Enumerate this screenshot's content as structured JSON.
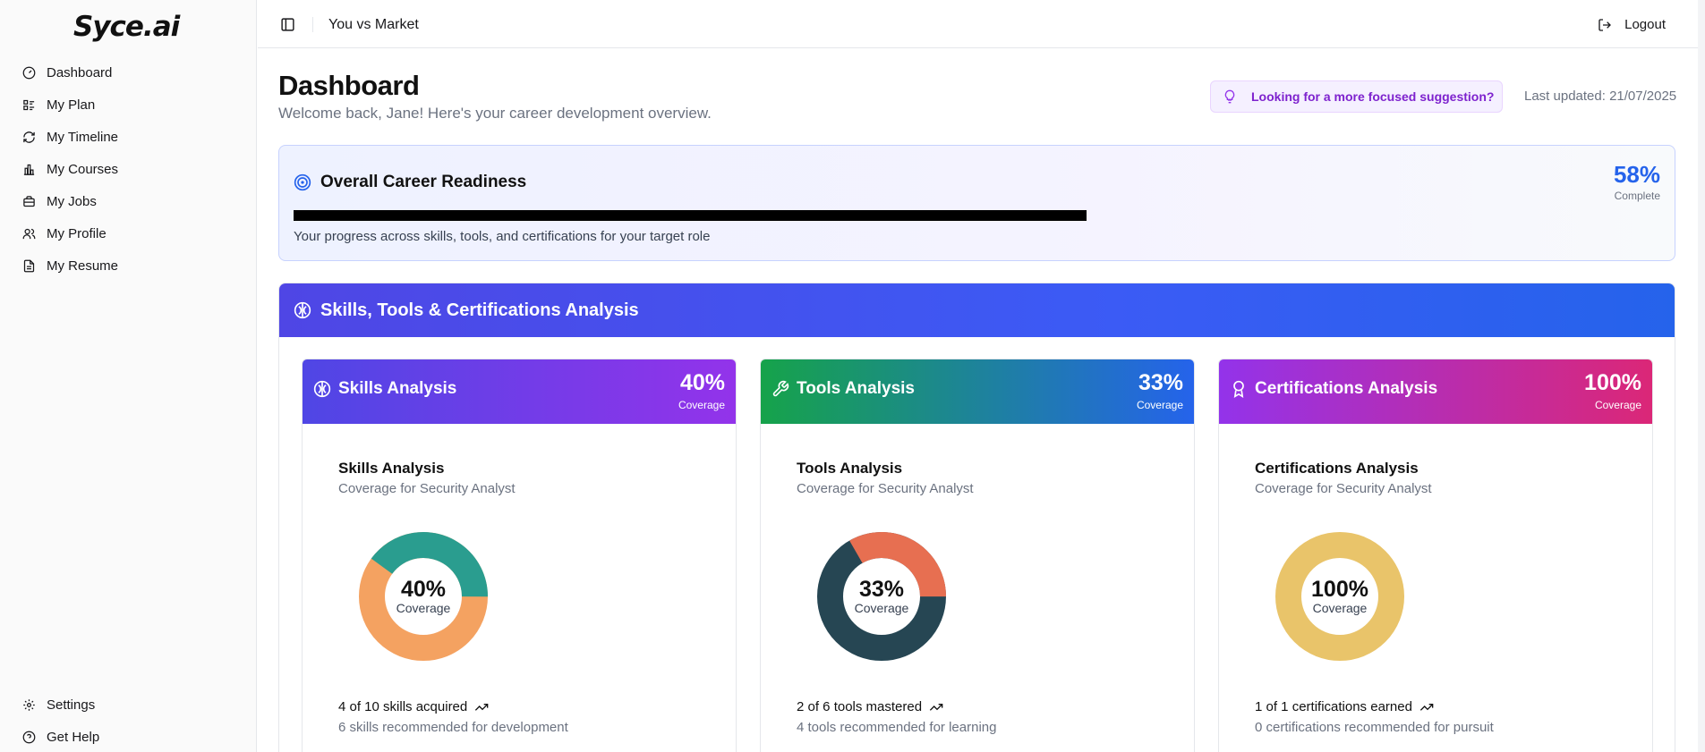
{
  "app": {
    "logo_text": "Syce.ai",
    "page_title": "You vs Market"
  },
  "sidebar": {
    "items": [
      {
        "label": "Dashboard",
        "icon": "gauge-icon"
      },
      {
        "label": "My Plan",
        "icon": "list-icon"
      },
      {
        "label": "My Timeline",
        "icon": "refresh-icon"
      },
      {
        "label": "My Courses",
        "icon": "bar-chart-icon"
      },
      {
        "label": "My Jobs",
        "icon": "briefcase-icon"
      },
      {
        "label": "My Profile",
        "icon": "users-icon"
      },
      {
        "label": "My Resume",
        "icon": "document-icon"
      }
    ],
    "bottom": [
      {
        "label": "Settings",
        "icon": "gear-icon"
      },
      {
        "label": "Get Help",
        "icon": "help-icon"
      }
    ]
  },
  "topbar": {
    "logout_label": "Logout"
  },
  "header": {
    "title": "Dashboard",
    "subtitle": "Welcome back, Jane! Here's your career development overview.",
    "suggestion_label": "Looking for a more focused suggestion?",
    "last_updated": "Last updated: 21/07/2025"
  },
  "readiness": {
    "title": "Overall Career Readiness",
    "percent_text": "58%",
    "percent_value": 0.58,
    "percent_label": "Complete",
    "description": "Your progress across skills, tools, and certifications for your target role"
  },
  "analysis": {
    "title": "Skills, Tools & Certifications Analysis",
    "cards": [
      {
        "title": "Skills Analysis",
        "coverage_text": "40%",
        "coverage_label": "Coverage",
        "body_title": "Skills Analysis",
        "body_sub": "Coverage for Security Analyst",
        "donut_pct": "40%",
        "donut_label": "Coverage",
        "stat": "4 of 10 skills acquired",
        "recommendation": "6 skills recommended for development",
        "value": 0.4,
        "colors": {
          "covered": "#2a9d8f",
          "remaining": "#f4a261",
          "header_from": "#4f46e5",
          "header_to": "#9333ea"
        }
      },
      {
        "title": "Tools Analysis",
        "coverage_text": "33%",
        "coverage_label": "Coverage",
        "body_title": "Tools Analysis",
        "body_sub": "Coverage for Security Analyst",
        "donut_pct": "33%",
        "donut_label": "Coverage",
        "stat": "2 of 6 tools mastered",
        "recommendation": "4 tools recommended for learning",
        "value": 0.333,
        "colors": {
          "covered": "#e76f51",
          "remaining": "#264653",
          "header_from": "#16a34a",
          "header_to": "#2563eb"
        }
      },
      {
        "title": "Certifications Analysis",
        "coverage_text": "100%",
        "coverage_label": "Coverage",
        "body_title": "Certifications Analysis",
        "body_sub": "Coverage for Security Analyst",
        "donut_pct": "100%",
        "donut_label": "Coverage",
        "stat": "1 of 1 certifications earned",
        "recommendation": "0 certifications recommended for pursuit",
        "value": 1.0,
        "colors": {
          "covered": "#e9c46a",
          "remaining": "#e9c46a",
          "header_from": "#9333ea",
          "header_to": "#db2777"
        }
      }
    ]
  }
}
